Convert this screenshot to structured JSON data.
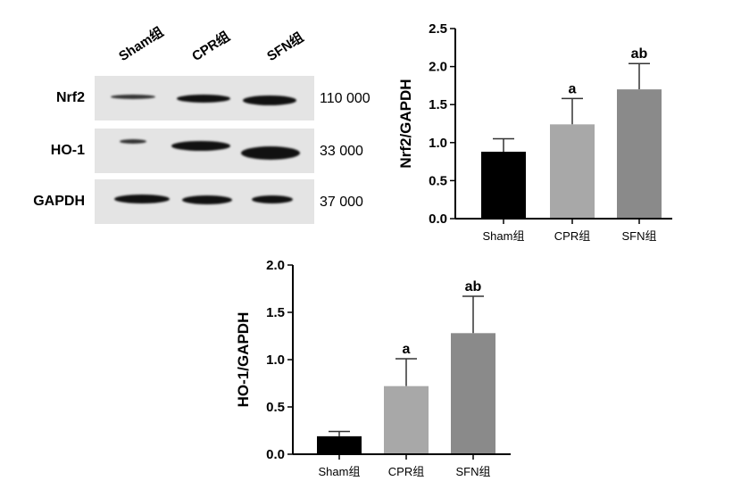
{
  "blot": {
    "lanes": [
      "Sham组",
      "CPR组",
      "SFN组"
    ],
    "rows": [
      {
        "protein": "Nrf2",
        "mw": "110 000"
      },
      {
        "protein": "HO-1",
        "mw": "33 000"
      },
      {
        "protein": "GAPDH",
        "mw": "37 000"
      }
    ]
  },
  "chart_data": [
    {
      "type": "bar",
      "categories": [
        "Sham组",
        "CPR组",
        "SFN组"
      ],
      "values": [
        0.88,
        1.24,
        1.7
      ],
      "errors": [
        0.17,
        0.34,
        0.34
      ],
      "annotations": [
        "",
        "a",
        "ab"
      ],
      "colors": [
        "#000000",
        "#a8a8a8",
        "#8a8a8a"
      ],
      "ylabel": "Nrf2/GAPDH",
      "ylim": [
        0,
        2.5
      ],
      "yticks": [
        "0.0",
        "0.5",
        "1.0",
        "1.5",
        "2.0",
        "2.5"
      ]
    },
    {
      "type": "bar",
      "categories": [
        "Sham组",
        "CPR组",
        "SFN组"
      ],
      "values": [
        0.19,
        0.72,
        1.28
      ],
      "errors": [
        0.05,
        0.29,
        0.39
      ],
      "annotations": [
        "",
        "a",
        "ab"
      ],
      "colors": [
        "#000000",
        "#a8a8a8",
        "#8a8a8a"
      ],
      "ylabel": "HO-1/GAPDH",
      "ylim": [
        0,
        2.0
      ],
      "yticks": [
        "0.0",
        "0.5",
        "1.0",
        "1.5",
        "2.0"
      ]
    }
  ]
}
